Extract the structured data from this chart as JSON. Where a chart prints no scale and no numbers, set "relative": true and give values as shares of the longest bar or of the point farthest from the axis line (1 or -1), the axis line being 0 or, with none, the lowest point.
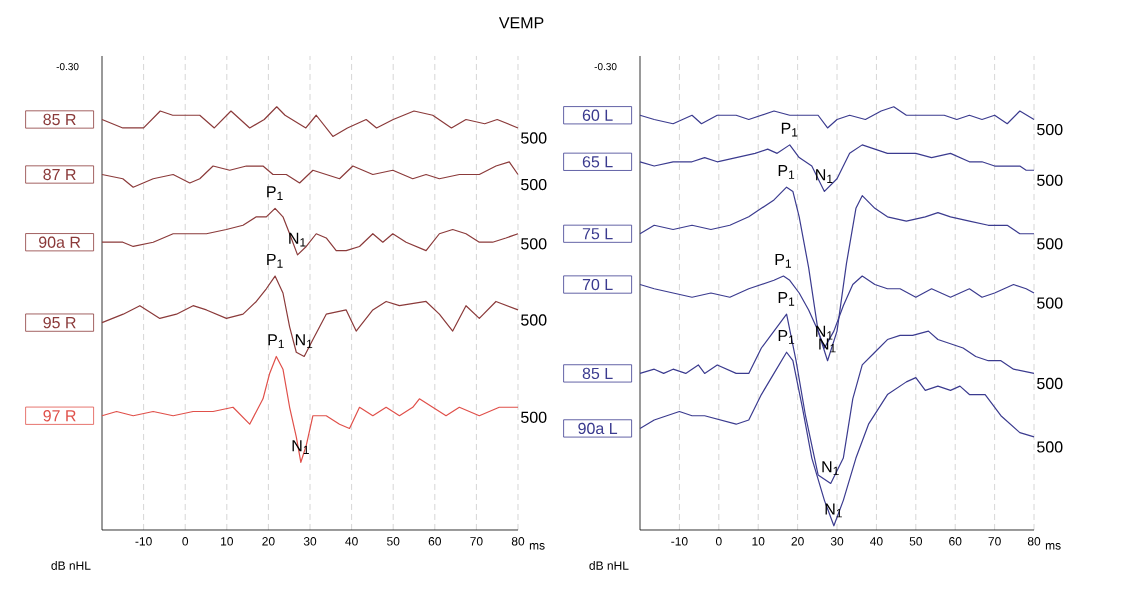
{
  "chart_data": [
    {
      "type": "line",
      "title": "VEMP",
      "xlabel": "ms",
      "ylabel": "dB nHL",
      "relative": true,
      "grid": "x",
      "xlim": [
        -20,
        80
      ],
      "xticks": [
        -10,
        0,
        10,
        20,
        30,
        40,
        50,
        60,
        70,
        80
      ],
      "series": [
        {
          "name": "85 R",
          "color": "#8b3a3a",
          "x": [
            -20,
            -15,
            -12,
            -10,
            -6,
            -3,
            0,
            3.5,
            7,
            11,
            15.5,
            19,
            22,
            24,
            29,
            31.5,
            35.5,
            39,
            43.5,
            46,
            50,
            55,
            59.5,
            64,
            67.5,
            72,
            75,
            80
          ],
          "values": [
            0.97,
            0.95,
            0.95,
            0.95,
            0.99,
            0.98,
            0.98,
            0.98,
            0.95,
            0.99,
            0.95,
            0.97,
            1.0,
            0.98,
            0.95,
            0.98,
            0.93,
            0.95,
            0.97,
            0.95,
            0.97,
            0.99,
            0.98,
            0.95,
            0.97,
            0.96,
            0.97,
            0.95
          ]
        },
        {
          "name": "87 R",
          "color": "#8b3a3a",
          "x": [
            -20,
            -15,
            -12.5,
            -7.7,
            -2.9,
            1.1,
            3.5,
            6.7,
            10.7,
            14.7,
            18.7,
            21.1,
            24.3,
            27.5,
            30.7,
            33.9,
            37.1,
            40.3,
            45.1,
            49.9,
            54.7,
            57.9,
            61.1,
            65.9,
            70.7,
            74.7,
            77.9,
            80
          ],
          "values": [
            0.84,
            0.83,
            0.81,
            0.83,
            0.84,
            0.82,
            0.83,
            0.86,
            0.85,
            0.86,
            0.86,
            0.84,
            0.84,
            0.82,
            0.85,
            0.84,
            0.83,
            0.86,
            0.84,
            0.85,
            0.83,
            0.84,
            0.83,
            0.84,
            0.84,
            0.86,
            0.87,
            0.84
          ]
        },
        {
          "name": "90a R",
          "color": "#8b3a3a",
          "x": [
            -20,
            -15,
            -12.5,
            -7.7,
            -2.9,
            1.1,
            5.1,
            9.9,
            13.9,
            17.1,
            19.5,
            21.6,
            23.5,
            25.1,
            27,
            29.1,
            31.5,
            33.9,
            36.3,
            38.7,
            41.9,
            45.1,
            47.5,
            49.9,
            53.1,
            57.9,
            61.1,
            64.3,
            67.5,
            70.7,
            73.9,
            77.1,
            80
          ],
          "values": [
            0.68,
            0.68,
            0.67,
            0.68,
            0.7,
            0.7,
            0.7,
            0.71,
            0.72,
            0.74,
            0.74,
            0.76,
            0.74,
            0.7,
            0.65,
            0.67,
            0.7,
            0.69,
            0.66,
            0.66,
            0.67,
            0.7,
            0.68,
            0.7,
            0.68,
            0.66,
            0.7,
            0.71,
            0.7,
            0.68,
            0.68,
            0.69,
            0.7
          ]
        },
        {
          "name": "95 R",
          "color": "#8b3a3a",
          "x": [
            -20,
            -14.9,
            -10.9,
            -6.1,
            -2.1,
            1.9,
            5.1,
            9.9,
            13.9,
            17.1,
            19.5,
            21.6,
            23.5,
            25.1,
            26.7,
            28.6,
            30.7,
            33.9,
            38.7,
            41.1,
            45.1,
            48.3,
            51.5,
            57.9,
            61.1,
            64.3,
            67.5,
            70.7,
            74.7,
            80
          ],
          "values": [
            0.49,
            0.51,
            0.53,
            0.5,
            0.51,
            0.53,
            0.52,
            0.5,
            0.51,
            0.54,
            0.57,
            0.6,
            0.56,
            0.48,
            0.42,
            0.41,
            0.45,
            0.51,
            0.52,
            0.47,
            0.52,
            0.54,
            0.53,
            0.54,
            0.51,
            0.47,
            0.53,
            0.5,
            0.54,
            0.52
          ]
        },
        {
          "name": "97 R",
          "color": "#e0504a",
          "x": [
            -20,
            -16.5,
            -12.5,
            -7.7,
            -2.9,
            1.9,
            6.7,
            11.5,
            15.5,
            18.7,
            20.3,
            21.9,
            23.5,
            25.1,
            26.7,
            27.8,
            29.1,
            30.7,
            33.9,
            37.1,
            39.5,
            41.9,
            45.1,
            48.3,
            51.5,
            54.7,
            56.3,
            59.5,
            62.7,
            65.9,
            70.7,
            75.5,
            80
          ],
          "values": [
            0.27,
            0.28,
            0.27,
            0.28,
            0.27,
            0.28,
            0.28,
            0.29,
            0.25,
            0.31,
            0.37,
            0.41,
            0.38,
            0.29,
            0.22,
            0.16,
            0.2,
            0.27,
            0.27,
            0.25,
            0.24,
            0.29,
            0.27,
            0.29,
            0.27,
            0.29,
            0.31,
            0.29,
            0.27,
            0.29,
            0.27,
            0.29,
            0.29
          ]
        }
      ],
      "annotations": [
        "-0.30",
        {
          "text": "P$_{1}$",
          "x": 21.6,
          "y": 0.76
        },
        {
          "text": "N$_{1}$",
          "x": 27,
          "y": 0.65
        },
        {
          "text": "P$_{1}$",
          "x": 21.6,
          "y": 0.6
        },
        {
          "text": "P$_{1}$",
          "x": 21.9,
          "y": 0.41
        },
        {
          "text": "N$_{1}$",
          "x": 28.6,
          "y": 0.41
        },
        {
          "text": "N$_{1}$",
          "x": 27.8,
          "y": 0.16
        },
        {
          "text": "500",
          "x": 80,
          "y": 0.95
        },
        {
          "text": "500",
          "x": 80,
          "y": 0.84
        },
        {
          "text": "500",
          "x": 80,
          "y": 0.7
        },
        {
          "text": "500",
          "x": 80,
          "y": 0.52
        },
        {
          "text": "500",
          "x": 80,
          "y": 0.29
        }
      ]
    },
    {
      "type": "line",
      "xlabel": "ms",
      "ylabel": "dB nHL",
      "relative": true,
      "grid": "x",
      "xlim": [
        -20,
        80
      ],
      "xticks": [
        -10,
        0,
        10,
        20,
        30,
        40,
        50,
        60,
        70,
        80
      ],
      "series": [
        {
          "name": "60 L",
          "color": "#3b3b8f",
          "x": [
            -20,
            -16.4,
            -11.6,
            -9.2,
            -6.8,
            -4.4,
            -0.4,
            4.4,
            7.6,
            10.8,
            14,
            18,
            22,
            25.2,
            27.6,
            30,
            33.2,
            37.2,
            41.2,
            44.4,
            47.6,
            52.4,
            57.2,
            60.4,
            63.6,
            66.8,
            70,
            73.2,
            76.4,
            80
          ],
          "values": [
            0.98,
            0.97,
            0.96,
            0.97,
            0.98,
            0.96,
            0.98,
            0.98,
            0.97,
            0.98,
            0.99,
            0.98,
            0.98,
            0.98,
            0.95,
            0.97,
            0.98,
            0.97,
            0.99,
            1.0,
            0.98,
            0.98,
            0.98,
            0.97,
            0.98,
            0.97,
            0.98,
            0.96,
            0.99,
            0.97
          ]
        },
        {
          "name": "65 L",
          "color": "#3b3b8f",
          "x": [
            -20,
            -16.4,
            -11.6,
            -6.8,
            -3.6,
            -0.4,
            4.4,
            9.2,
            12.4,
            14.8,
            18,
            20.4,
            23.6,
            26.8,
            30,
            33.2,
            36.4,
            39.6,
            42.8,
            46,
            50,
            54,
            58.8,
            63.6,
            66.8,
            70,
            73.2,
            76.4,
            78,
            80
          ],
          "values": [
            0.87,
            0.86,
            0.87,
            0.87,
            0.88,
            0.87,
            0.88,
            0.89,
            0.9,
            0.89,
            0.91,
            0.88,
            0.86,
            0.8,
            0.83,
            0.89,
            0.91,
            0.9,
            0.89,
            0.89,
            0.89,
            0.88,
            0.89,
            0.87,
            0.87,
            0.86,
            0.86,
            0.86,
            0.85,
            0.85
          ]
        },
        {
          "name": "75 L",
          "color": "#3b3b8f",
          "x": [
            -20,
            -16.4,
            -11.6,
            -6.8,
            -2,
            2.8,
            7.6,
            10.8,
            14,
            17.2,
            18.8,
            20.4,
            22.8,
            25.2,
            27.6,
            30,
            32.4,
            34.8,
            36.4,
            39.6,
            42.8,
            47.6,
            52.4,
            55.6,
            58.8,
            63.6,
            68.4,
            73.2,
            76.4,
            80
          ],
          "values": [
            0.7,
            0.72,
            0.71,
            0.72,
            0.71,
            0.72,
            0.74,
            0.76,
            0.78,
            0.81,
            0.8,
            0.74,
            0.62,
            0.47,
            0.4,
            0.47,
            0.63,
            0.76,
            0.79,
            0.76,
            0.74,
            0.73,
            0.74,
            0.75,
            0.74,
            0.73,
            0.72,
            0.72,
            0.7,
            0.7
          ]
        },
        {
          "name": "70 L",
          "color": "#3b3b8f",
          "x": [
            -20,
            -16.4,
            -11.6,
            -6.8,
            -2,
            2.8,
            7.6,
            10.8,
            14,
            16.4,
            18,
            20.4,
            22.8,
            25.2,
            26.8,
            29.2,
            31.6,
            34,
            36.4,
            39.6,
            42.8,
            46,
            50,
            54,
            58.8,
            63.6,
            66.8,
            70,
            74.8,
            78,
            80
          ],
          "values": [
            0.58,
            0.57,
            0.56,
            0.55,
            0.56,
            0.55,
            0.57,
            0.58,
            0.59,
            0.6,
            0.59,
            0.56,
            0.52,
            0.47,
            0.43,
            0.47,
            0.53,
            0.58,
            0.6,
            0.58,
            0.57,
            0.57,
            0.55,
            0.57,
            0.55,
            0.57,
            0.55,
            0.56,
            0.58,
            0.57,
            0.56
          ]
        },
        {
          "name": "85 L",
          "color": "#3b3b8f",
          "x": [
            -20,
            -16.4,
            -14,
            -11.6,
            -8.4,
            -5.2,
            -3.6,
            -0.4,
            4.4,
            7.6,
            10.8,
            14,
            17.2,
            19.6,
            22,
            25.2,
            28.4,
            31.6,
            34,
            36.4,
            39.6,
            42.8,
            46,
            49.2,
            53.2,
            55.6,
            58.8,
            62,
            65.2,
            68.4,
            71.6,
            74.8,
            80
          ],
          "values": [
            0.37,
            0.38,
            0.37,
            0.38,
            0.37,
            0.39,
            0.37,
            0.39,
            0.37,
            0.37,
            0.43,
            0.47,
            0.51,
            0.4,
            0.27,
            0.13,
            0.11,
            0.17,
            0.31,
            0.39,
            0.42,
            0.45,
            0.46,
            0.46,
            0.47,
            0.45,
            0.44,
            0.43,
            0.41,
            0.4,
            0.4,
            0.38,
            0.37
          ]
        },
        {
          "name": "90a L",
          "color": "#3b3b8f",
          "x": [
            -20,
            -16.4,
            -13.2,
            -10,
            -6.8,
            -3.6,
            0.4,
            4.4,
            7.6,
            10.8,
            14,
            17.2,
            18.8,
            21.2,
            23.6,
            26.8,
            29.2,
            31.6,
            34.8,
            38,
            42.8,
            47.6,
            50,
            52.4,
            55.6,
            58.8,
            61.2,
            63.6,
            67.6,
            71.6,
            76.4,
            80
          ],
          "values": [
            0.24,
            0.26,
            0.27,
            0.28,
            0.27,
            0.27,
            0.26,
            0.25,
            0.26,
            0.32,
            0.37,
            0.42,
            0.4,
            0.29,
            0.17,
            0.07,
            0.01,
            0.07,
            0.17,
            0.25,
            0.32,
            0.35,
            0.36,
            0.33,
            0.34,
            0.33,
            0.34,
            0.32,
            0.32,
            0.27,
            0.23,
            0.22
          ]
        }
      ],
      "annotations": [
        "-0.30",
        {
          "text": "P$_{1}$",
          "x": 18,
          "y": 0.91
        },
        {
          "text": "P$_{1}$",
          "x": 17.2,
          "y": 0.81
        },
        {
          "text": "N$_{1}$",
          "x": 26.8,
          "y": 0.8
        },
        {
          "text": "P$_{1}$",
          "x": 16.4,
          "y": 0.6
        },
        {
          "text": "P$_{1}$",
          "x": 17.2,
          "y": 0.51
        },
        {
          "text": "N$_{1}$",
          "x": 26.8,
          "y": 0.43
        },
        {
          "text": "P$_{1}$",
          "x": 17.2,
          "y": 0.42
        },
        {
          "text": "N$_{1}$",
          "x": 27.6,
          "y": 0.4
        },
        {
          "text": "N$_{1}$",
          "x": 28.4,
          "y": 0.11
        },
        {
          "text": "N$_{1}$",
          "x": 29.2,
          "y": 0.01
        },
        {
          "text": "500",
          "x": 80,
          "y": 0.97
        },
        {
          "text": "500",
          "x": 80,
          "y": 0.85
        },
        {
          "text": "500",
          "x": 80,
          "y": 0.7
        },
        {
          "text": "500",
          "x": 80,
          "y": 0.56
        },
        {
          "text": "500",
          "x": 80,
          "y": 0.37
        },
        {
          "text": "500",
          "x": 80,
          "y": 0.22
        }
      ]
    }
  ]
}
